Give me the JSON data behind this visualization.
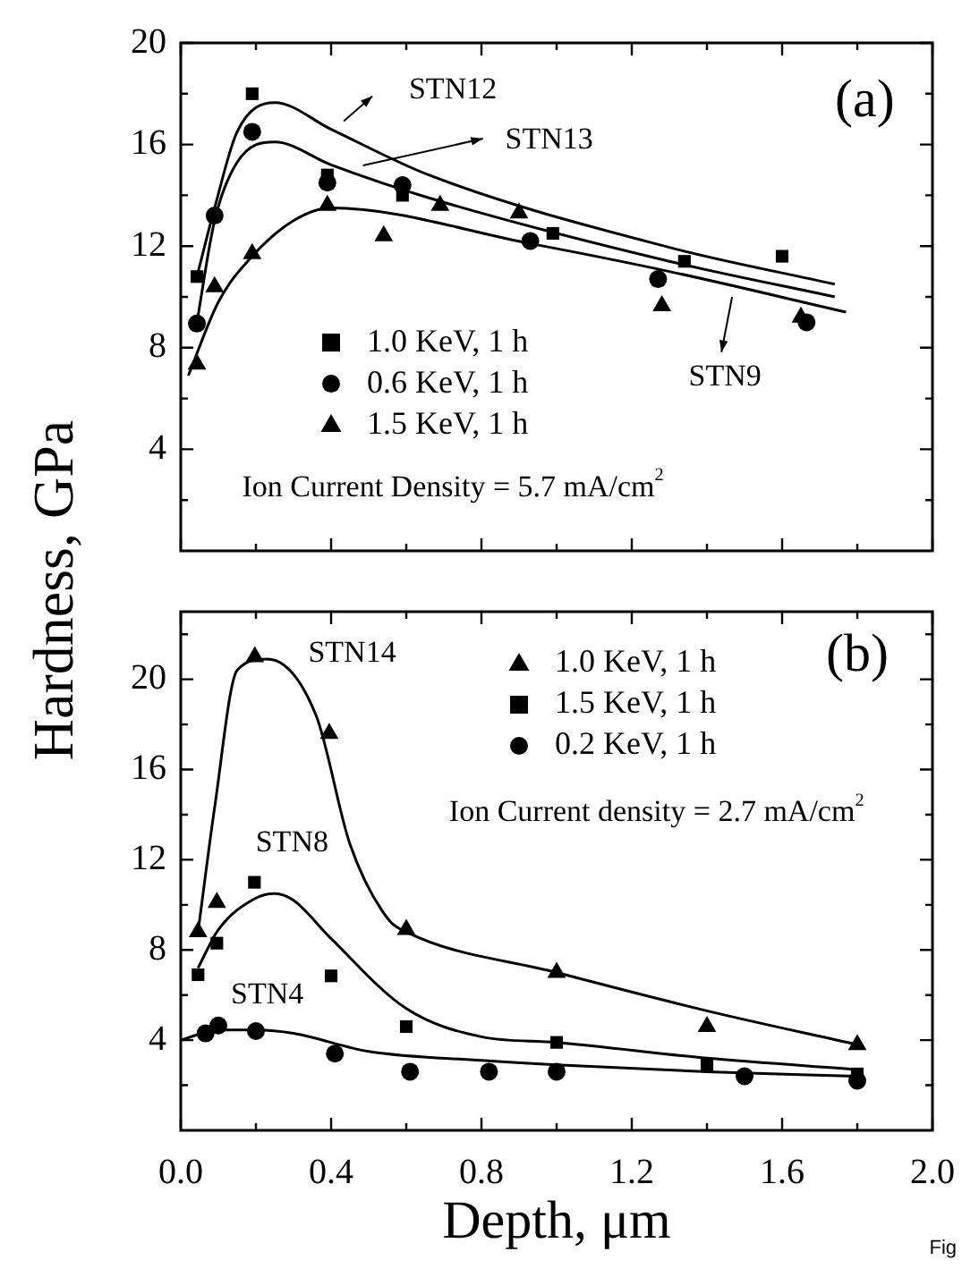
{
  "chart_data": [
    {
      "type": "scatter",
      "ylabel": "Hardness, GPa",
      "xlim": [
        0,
        2
      ],
      "ylim": [
        0,
        20
      ],
      "tick_labels": "y",
      "legend": "bottom left",
      "xticks": [
        0,
        {
          "value": 0.2,
          "label": null
        },
        0.4,
        {
          "value": 0.6,
          "label": null
        },
        0.8,
        {
          "value": 1.0,
          "label": null
        },
        1.2,
        {
          "value": 1.4,
          "label": null
        },
        1.6,
        {
          "value": 1.8,
          "label": null
        },
        2
      ],
      "yticks": [
        {
          "value": 2,
          "label": null
        },
        4,
        {
          "value": 6,
          "label": null
        },
        8,
        {
          "value": 10,
          "label": null
        },
        12,
        {
          "value": 14,
          "label": null
        },
        16,
        {
          "value": 18,
          "label": null
        },
        20
      ],
      "series": [
        {
          "name": "1.0 KeV, 1 h",
          "type": "scatter",
          "marker": "square",
          "color": "#000000",
          "x": [
            0.043,
            0.19,
            0.39,
            0.59,
            0.99,
            1.34,
            1.6
          ],
          "values": [
            10.8,
            18.0,
            14.8,
            14.0,
            12.5,
            11.4,
            11.6
          ]
        },
        {
          "name": "0.6 KeV, 1 h",
          "type": "scatter",
          "marker": "circle",
          "color": "#000000",
          "x": [
            0.043,
            0.09,
            0.19,
            0.39,
            0.59,
            0.93,
            1.27,
            1.665
          ],
          "values": [
            8.95,
            13.2,
            16.5,
            14.5,
            14.4,
            12.2,
            10.7,
            9.0
          ]
        },
        {
          "name": "1.5 KeV, 1 h",
          "type": "scatter",
          "marker": "triangle",
          "color": "#000000",
          "x": [
            0.043,
            0.09,
            0.19,
            0.39,
            0.54,
            0.69,
            0.9,
            1.28,
            1.65
          ],
          "values": [
            7.35,
            10.4,
            11.7,
            13.6,
            12.4,
            13.6,
            13.3,
            9.65,
            9.2
          ]
        },
        {
          "type": "line",
          "marker": "none",
          "color": "#000000",
          "x": [
            0.043,
            0.09,
            0.15,
            0.25,
            0.4,
            0.66,
            1.3,
            1.74
          ],
          "values": [
            10.8,
            13.5,
            16.5,
            17.65,
            16.6,
            14.8,
            11.95,
            10.5
          ]
        },
        {
          "type": "line",
          "marker": "none",
          "color": "#000000",
          "x": [
            0.043,
            0.09,
            0.15,
            0.25,
            0.4,
            0.66,
            1.3,
            1.74
          ],
          "values": [
            9.0,
            13.0,
            15.3,
            16.1,
            15.2,
            13.9,
            11.4,
            10.0
          ]
        },
        {
          "type": "line",
          "marker": "none",
          "color": "#000000",
          "x": [
            0.02,
            0.1,
            0.19,
            0.3,
            0.4,
            0.93,
            1.3,
            1.77
          ],
          "values": [
            6.9,
            9.8,
            11.6,
            13.0,
            13.5,
            12.1,
            11.0,
            9.4
          ]
        }
      ],
      "annotations": [
        "(a)",
        "Ion Current Density = 5.7 mA/cm$^{2}$",
        "STN12",
        "STN13",
        "STN9"
      ]
    },
    {
      "type": "scatter",
      "xlabel": "Depth, μm",
      "xlim": [
        0,
        2
      ],
      "ylim": [
        0,
        23
      ],
      "legend": "top right",
      "xticks": [
        {
          "value": 0,
          "label": "0.0"
        },
        {
          "value": 0.2,
          "label": null
        },
        {
          "value": 0.4,
          "label": "0.4"
        },
        {
          "value": 0.6,
          "label": null
        },
        {
          "value": 0.8,
          "label": "0.8"
        },
        {
          "value": 1.0,
          "label": null
        },
        {
          "value": 1.2,
          "label": "1.2"
        },
        {
          "value": 1.4,
          "label": null
        },
        {
          "value": 1.6,
          "label": "1.6"
        },
        {
          "value": 1.8,
          "label": null
        },
        {
          "value": 2.0,
          "label": "2.0"
        }
      ],
      "yticks": [
        {
          "value": 2,
          "label": null
        },
        4,
        {
          "value": 6,
          "label": null
        },
        8,
        {
          "value": 10,
          "label": null
        },
        12,
        {
          "value": 14,
          "label": null
        },
        16,
        {
          "value": 18,
          "label": null
        },
        20,
        {
          "value": 22,
          "label": null
        }
      ],
      "series": [
        {
          "name": "1.0 KeV, 1 h",
          "type": "scatter",
          "marker": "triangle",
          "color": "#000000",
          "x": [
            0.046,
            0.096,
            0.197,
            0.395,
            0.6,
            1.0,
            1.4,
            1.8
          ],
          "values": [
            8.8,
            10.1,
            21.0,
            17.6,
            8.9,
            7.0,
            4.6,
            3.8
          ]
        },
        {
          "name": "1.5 KeV, 1 h",
          "type": "scatter",
          "marker": "square",
          "color": "#000000",
          "x": [
            0.046,
            0.096,
            0.196,
            0.4,
            0.6,
            1.0,
            1.4,
            1.8
          ],
          "values": [
            6.9,
            8.3,
            11.0,
            6.85,
            4.6,
            3.9,
            2.9,
            2.5
          ]
        },
        {
          "name": "0.2 KeV, 1 h",
          "type": "scatter",
          "marker": "circle",
          "color": "#000000",
          "x": [
            0.066,
            0.1,
            0.2,
            0.41,
            0.61,
            0.82,
            1.0,
            1.5,
            1.8
          ],
          "values": [
            4.3,
            4.65,
            4.4,
            3.4,
            2.6,
            2.6,
            2.6,
            2.4,
            2.2
          ]
        },
        {
          "type": "line",
          "marker": "none",
          "color": "#000000",
          "x": [
            0.046,
            0.09,
            0.15,
            0.23,
            0.36,
            0.45,
            0.55,
            0.6,
            1.0,
            1.4,
            1.8
          ],
          "values": [
            8.8,
            14.3,
            20.4,
            20.9,
            18.4,
            12.7,
            9.4,
            8.8,
            7.0,
            5.3,
            3.8
          ]
        },
        {
          "type": "line",
          "marker": "none",
          "color": "#000000",
          "x": [
            0.046,
            0.1,
            0.2,
            0.25,
            0.3,
            0.4,
            0.6,
            0.8,
            1.0,
            1.4,
            1.8
          ],
          "values": [
            7.2,
            8.9,
            10.3,
            10.5,
            10.2,
            8.5,
            5.4,
            4.15,
            3.9,
            3.2,
            2.7
          ]
        },
        {
          "type": "line",
          "marker": "none",
          "color": "#000000",
          "x": [
            0,
            0.1,
            0.2,
            0.3,
            0.5,
            0.8,
            1.0,
            1.4,
            1.8
          ],
          "values": [
            4.0,
            4.45,
            4.45,
            4.3,
            3.5,
            3.1,
            2.9,
            2.6,
            2.4
          ]
        }
      ],
      "annotations": [
        "(b)",
        "Ion Current density = 2.7 mA/cm$^{2}$",
        "Fig",
        "STN14",
        "STN8",
        "STN4"
      ]
    }
  ]
}
